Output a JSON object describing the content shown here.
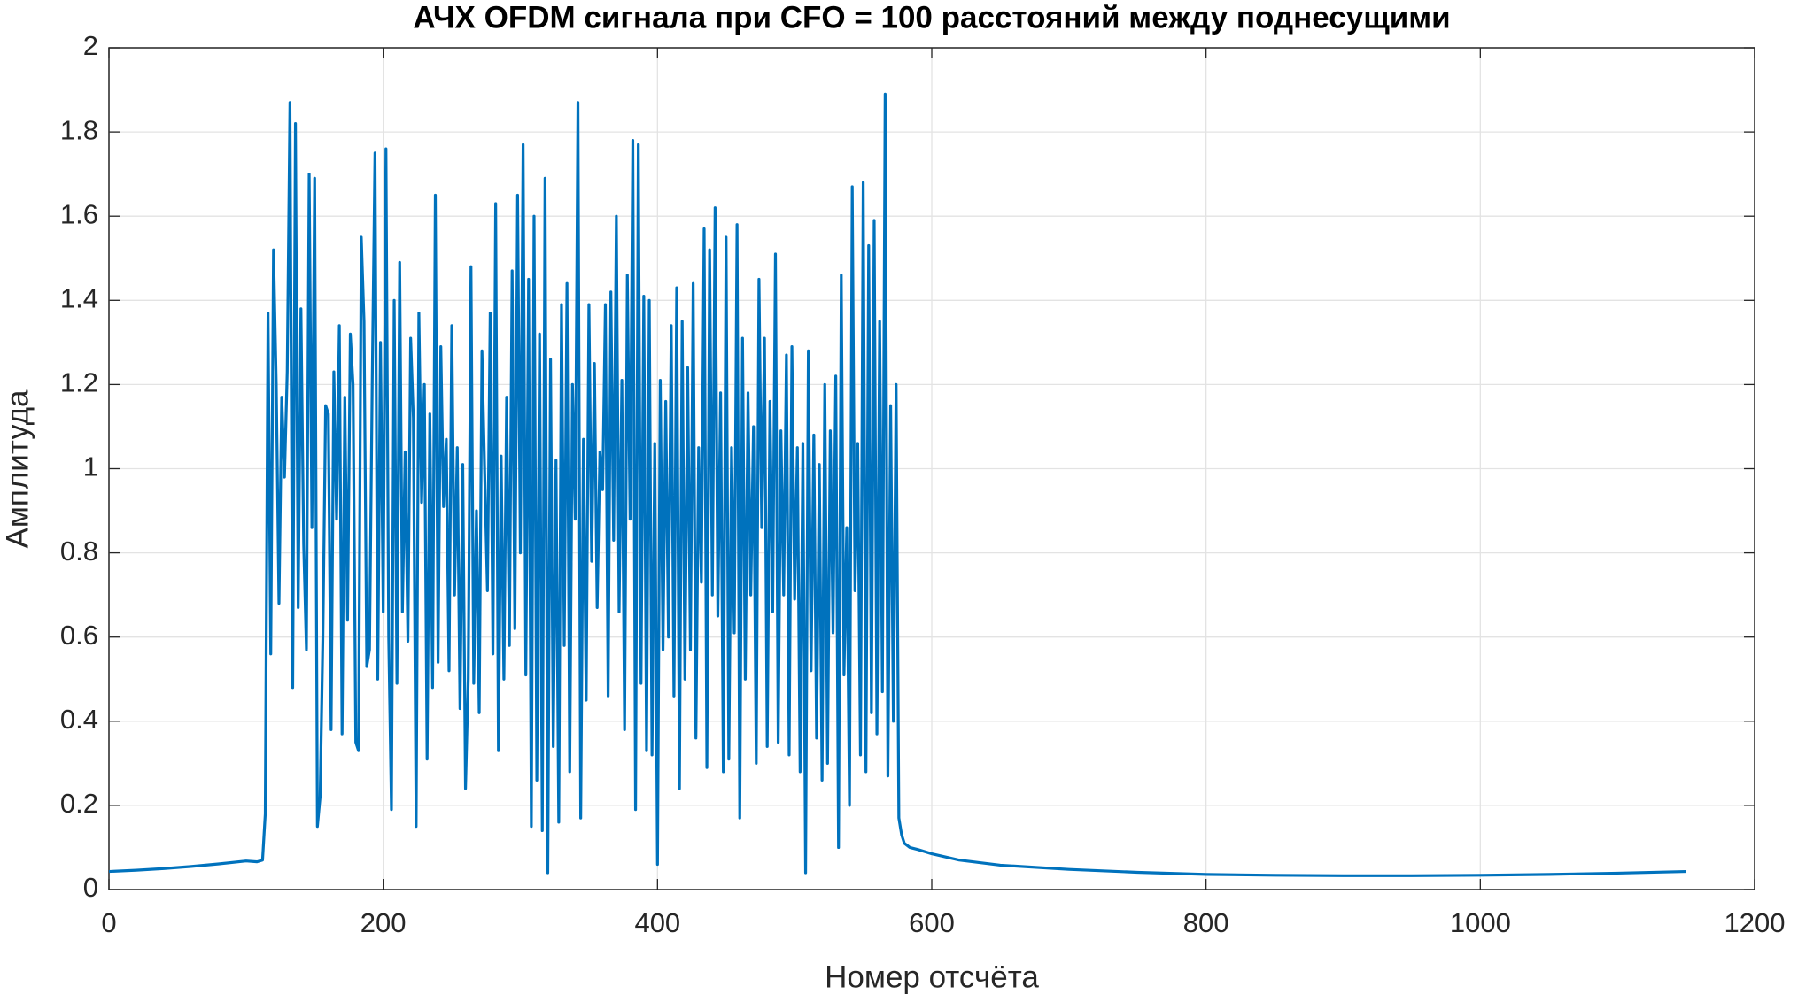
{
  "chart_data": {
    "type": "line",
    "title": "АЧХ OFDM сигнала при CFO = 100 расстояний между поднесущими",
    "xlabel": "Номер отсчёта",
    "ylabel": "Амплитуда",
    "color": "#0072bd",
    "grid": true,
    "xlim": [
      0,
      1200
    ],
    "xticks": [
      0,
      200,
      400,
      600,
      800,
      1000,
      1200
    ],
    "ylim": [
      0,
      2
    ],
    "yticks": [
      0,
      0.2,
      0.4,
      0.6,
      0.8,
      1,
      1.2,
      1.4,
      1.6,
      1.8,
      2
    ],
    "x": [
      0,
      20,
      40,
      60,
      80,
      100,
      108,
      112,
      114,
      116,
      118,
      120,
      122,
      124,
      126,
      128,
      130,
      132,
      134,
      136,
      138,
      140,
      142,
      144,
      146,
      148,
      150,
      152,
      154,
      156,
      158,
      160,
      162,
      164,
      166,
      168,
      170,
      172,
      174,
      176,
      178,
      180,
      182,
      184,
      186,
      188,
      190,
      192,
      194,
      196,
      198,
      200,
      202,
      204,
      206,
      208,
      210,
      212,
      214,
      216,
      218,
      220,
      222,
      224,
      226,
      228,
      230,
      232,
      234,
      236,
      238,
      240,
      242,
      244,
      246,
      248,
      250,
      252,
      254,
      256,
      258,
      260,
      262,
      264,
      266,
      268,
      270,
      272,
      274,
      276,
      278,
      280,
      282,
      284,
      286,
      288,
      290,
      292,
      294,
      296,
      298,
      300,
      302,
      304,
      306,
      308,
      310,
      312,
      314,
      316,
      318,
      320,
      322,
      324,
      326,
      328,
      330,
      332,
      334,
      336,
      338,
      340,
      342,
      344,
      346,
      348,
      350,
      352,
      354,
      356,
      358,
      360,
      362,
      364,
      366,
      368,
      370,
      372,
      374,
      376,
      378,
      380,
      382,
      384,
      386,
      388,
      390,
      392,
      394,
      396,
      398,
      400,
      402,
      404,
      406,
      408,
      410,
      412,
      414,
      416,
      418,
      420,
      422,
      424,
      426,
      428,
      430,
      432,
      434,
      436,
      438,
      440,
      442,
      444,
      446,
      448,
      450,
      452,
      454,
      456,
      458,
      460,
      462,
      464,
      466,
      468,
      470,
      472,
      474,
      476,
      478,
      480,
      482,
      484,
      486,
      488,
      490,
      492,
      494,
      496,
      498,
      500,
      502,
      504,
      506,
      508,
      510,
      512,
      514,
      516,
      518,
      520,
      522,
      524,
      526,
      528,
      530,
      532,
      534,
      536,
      538,
      540,
      542,
      544,
      546,
      548,
      550,
      552,
      554,
      556,
      558,
      560,
      562,
      564,
      566,
      568,
      570,
      572,
      574,
      576,
      578,
      580,
      584,
      590,
      600,
      620,
      650,
      700,
      750,
      800,
      850,
      900,
      950,
      1000,
      1050,
      1100,
      1150
    ],
    "values": [
      0.043,
      0.046,
      0.05,
      0.055,
      0.061,
      0.068,
      0.066,
      0.07,
      0.18,
      1.37,
      0.56,
      1.52,
      1.2,
      0.68,
      1.17,
      0.98,
      1.23,
      1.87,
      0.48,
      1.82,
      0.67,
      1.38,
      0.82,
      0.57,
      1.7,
      0.86,
      1.69,
      0.15,
      0.22,
      0.6,
      1.15,
      1.13,
      0.38,
      1.23,
      0.88,
      1.34,
      0.37,
      1.17,
      0.64,
      1.32,
      1.2,
      0.35,
      0.33,
      1.55,
      1.35,
      0.53,
      0.57,
      1.21,
      1.75,
      0.5,
      1.3,
      0.66,
      1.76,
      0.6,
      0.19,
      1.4,
      0.49,
      1.49,
      0.66,
      1.04,
      0.59,
      1.31,
      1.12,
      0.15,
      1.37,
      0.92,
      1.2,
      0.31,
      1.13,
      0.48,
      1.65,
      0.54,
      1.29,
      0.91,
      1.07,
      0.52,
      1.34,
      0.7,
      1.05,
      0.43,
      1.01,
      0.24,
      0.5,
      1.48,
      0.49,
      0.9,
      0.42,
      1.28,
      0.99,
      0.71,
      1.37,
      0.56,
      1.63,
      0.33,
      1.03,
      0.5,
      1.17,
      0.58,
      1.47,
      0.62,
      1.65,
      0.8,
      1.77,
      0.51,
      1.45,
      0.15,
      1.6,
      0.26,
      1.32,
      0.14,
      1.69,
      0.04,
      1.26,
      0.34,
      1.02,
      0.16,
      1.39,
      0.58,
      1.44,
      0.28,
      1.2,
      0.88,
      1.87,
      0.17,
      1.07,
      0.45,
      1.39,
      0.78,
      1.25,
      0.67,
      1.04,
      0.95,
      1.39,
      0.46,
      1.42,
      0.83,
      1.6,
      0.66,
      1.21,
      0.38,
      1.46,
      0.88,
      1.78,
      0.19,
      1.77,
      0.49,
      1.41,
      0.33,
      1.4,
      0.32,
      1.06,
      0.06,
      1.21,
      0.57,
      1.16,
      0.6,
      1.34,
      0.46,
      1.43,
      0.24,
      1.35,
      0.5,
      1.24,
      0.57,
      1.44,
      0.36,
      1.05,
      0.73,
      1.57,
      0.29,
      1.52,
      0.7,
      1.62,
      0.65,
      1.18,
      0.28,
      1.55,
      0.31,
      1.05,
      0.61,
      1.58,
      0.17,
      1.31,
      0.5,
      1.18,
      0.7,
      1.1,
      0.3,
      1.45,
      0.86,
      1.31,
      0.34,
      1.16,
      0.66,
      1.51,
      0.35,
      1.09,
      0.7,
      1.27,
      0.32,
      1.29,
      0.69,
      1.05,
      0.28,
      1.06,
      0.04,
      1.28,
      0.52,
      1.08,
      0.36,
      1.01,
      0.26,
      1.2,
      0.3,
      1.09,
      0.61,
      1.22,
      0.1,
      1.46,
      0.51,
      0.86,
      0.2,
      1.67,
      0.71,
      1.06,
      0.32,
      1.68,
      0.28,
      1.53,
      0.42,
      1.59,
      0.37,
      1.35,
      0.47,
      1.89,
      0.27,
      1.15,
      0.4,
      1.2,
      0.17,
      0.13,
      0.11,
      0.1,
      0.095,
      0.085,
      0.07,
      0.058,
      0.048,
      0.041,
      0.036,
      0.034,
      0.033,
      0.033,
      0.034,
      0.036,
      0.039,
      0.043
    ]
  }
}
